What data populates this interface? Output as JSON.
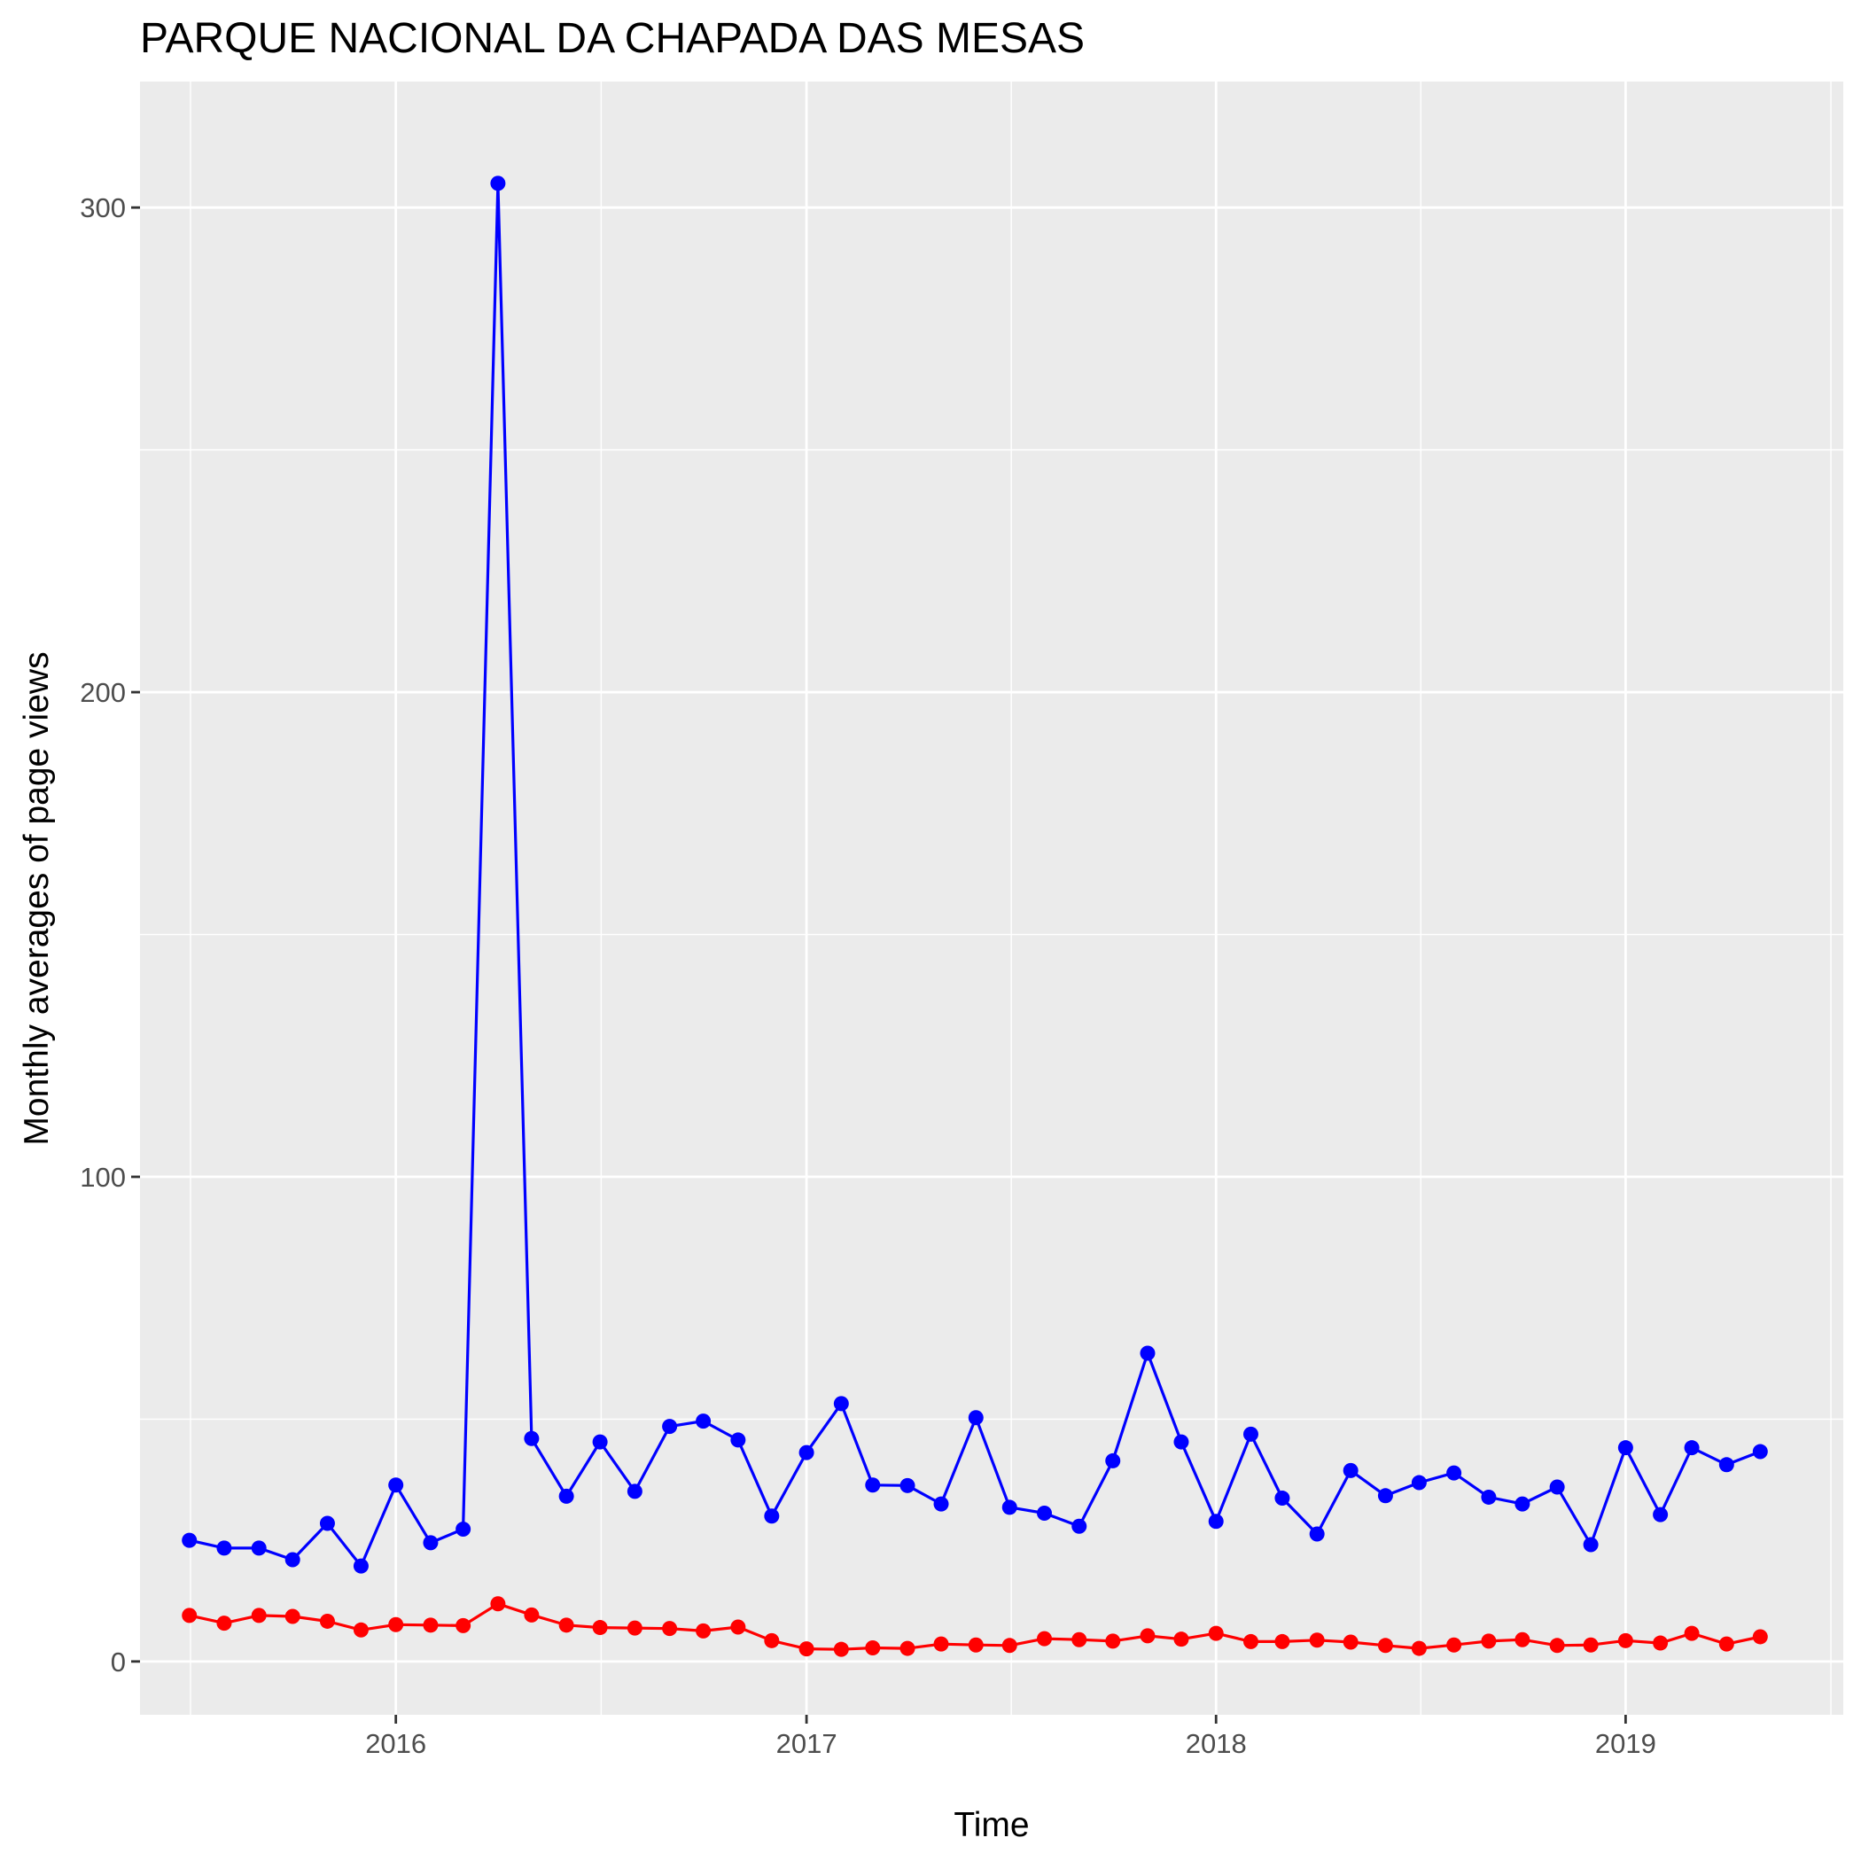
{
  "chart_data": {
    "type": "line",
    "title": "PARQUE NACIONAL DA CHAPADA DAS MESAS",
    "xlabel": "Time",
    "ylabel": "Monthly averages of page views",
    "x_ticks": [
      "2016",
      "2017",
      "2018",
      "2019"
    ],
    "y_ticks": [
      "0",
      "100",
      "200",
      "300"
    ],
    "xlim": [
      "2015-05-18",
      "2019-07-14"
    ],
    "ylim": [
      -11,
      326
    ],
    "grid": true,
    "legend": "none",
    "x": [
      "2015-07",
      "2015-08",
      "2015-09",
      "2015-10",
      "2015-11",
      "2015-12",
      "2016-01",
      "2016-02",
      "2016-03",
      "2016-04",
      "2016-05",
      "2016-06",
      "2016-07",
      "2016-08",
      "2016-09",
      "2016-10",
      "2016-11",
      "2016-12",
      "2017-01",
      "2017-02",
      "2017-03",
      "2017-04",
      "2017-05",
      "2017-06",
      "2017-07",
      "2017-08",
      "2017-09",
      "2017-10",
      "2017-11",
      "2017-12",
      "2018-01",
      "2018-02",
      "2018-03",
      "2018-04",
      "2018-05",
      "2018-06",
      "2018-07",
      "2018-08",
      "2018-09",
      "2018-10",
      "2018-11",
      "2018-12",
      "2019-01",
      "2019-02",
      "2019-03",
      "2019-04",
      "2019-05"
    ],
    "series": [
      {
        "color": "#0000ff",
        "values": [
          25,
          23.4,
          23.4,
          21,
          28.5,
          19.7,
          36.4,
          24.5,
          27.3,
          305,
          46,
          34.1,
          45.3,
          35.1,
          48.5,
          49.6,
          45.7,
          30,
          43.1,
          53.2,
          36.4,
          36.3,
          32.5,
          50.3,
          31.8,
          30.6,
          27.9,
          41.4,
          63.6,
          45.3,
          28.9,
          46.9,
          33.7,
          26.3,
          39.4,
          34.2,
          36.9,
          38.9,
          33.9,
          32.5,
          36,
          24.1,
          44.1,
          30.3,
          44.1,
          40.6,
          43.3
        ]
      },
      {
        "color": "#ff0000",
        "values": [
          9.5,
          7.9,
          9.5,
          9.3,
          8.3,
          6.5,
          7.6,
          7.5,
          7.4,
          11.9,
          9.6,
          7.5,
          7,
          6.9,
          6.8,
          6.3,
          7.1,
          4.3,
          2.6,
          2.5,
          2.8,
          2.7,
          3.6,
          3.4,
          3.3,
          4.7,
          4.5,
          4.2,
          5.3,
          4.6,
          5.8,
          4.1,
          4.1,
          4.4,
          4,
          3.3,
          2.7,
          3.4,
          4.2,
          4.5,
          3.3,
          3.4,
          4.3,
          3.8,
          5.8,
          3.6,
          5.1
        ]
      }
    ]
  }
}
